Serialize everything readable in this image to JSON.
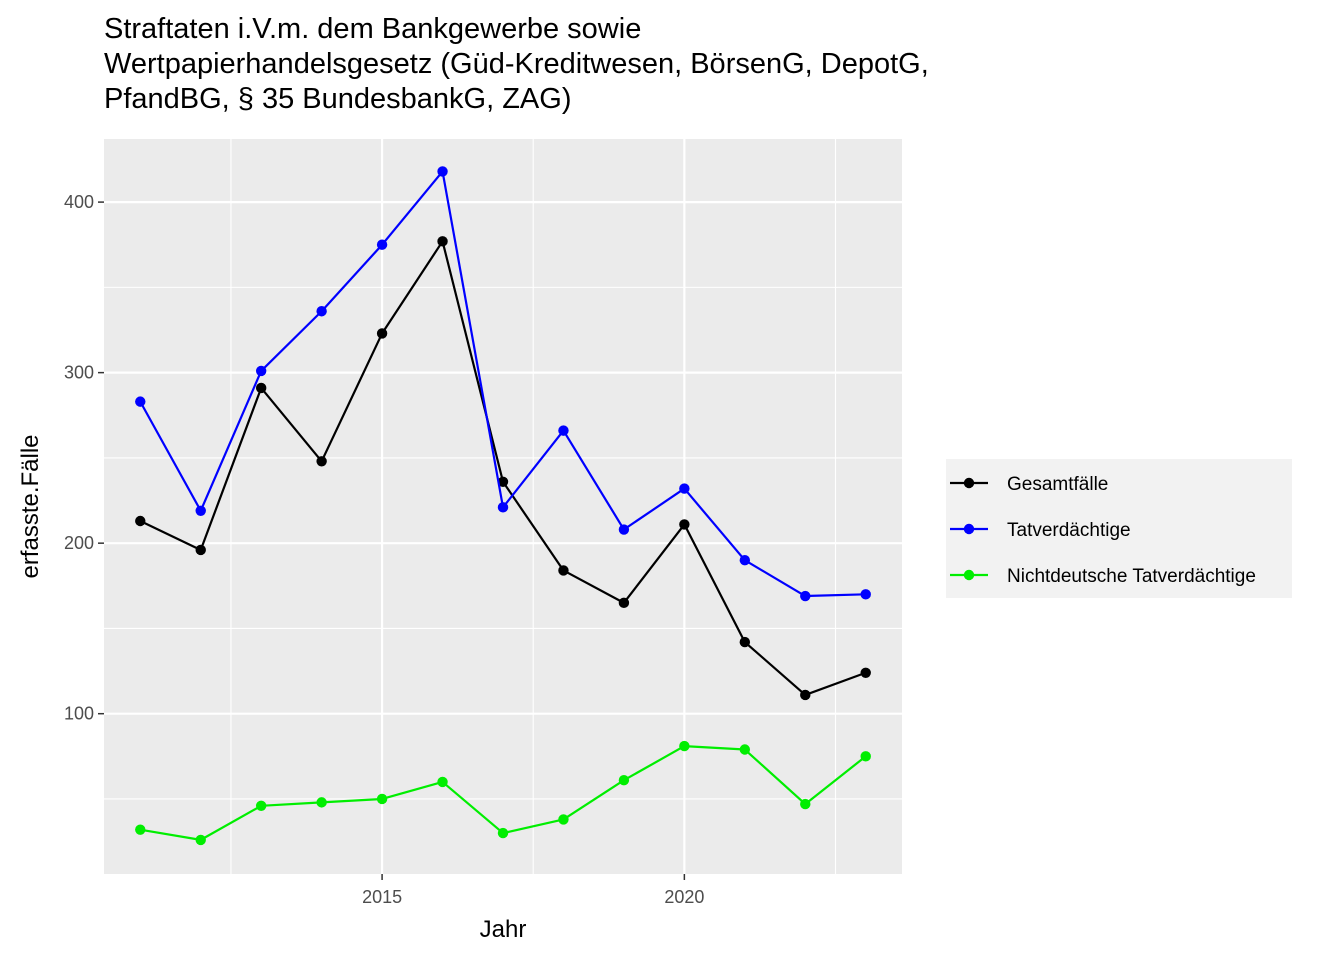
{
  "chart_data": {
    "type": "line",
    "title_lines": [
      "Straftaten i.V.m. dem Bankgewerbe sowie",
      "Wertpapierhandelsgesetz (Güd-Kreditwesen, BörsenG, DepotG,",
      "PfandBG, § 35 BundesbankG, ZAG)"
    ],
    "xlabel": "Jahr",
    "ylabel": "erfasste.Fälle",
    "x": [
      2011,
      2012,
      2013,
      2014,
      2015,
      2016,
      2017,
      2018,
      2019,
      2020,
      2021,
      2022,
      2023
    ],
    "xlim": [
      2010.4,
      2023.6
    ],
    "ylim": [
      6,
      437
    ],
    "x_ticks": [
      2015,
      2020
    ],
    "y_ticks": [
      100,
      200,
      300,
      400
    ],
    "grid": true,
    "legend_position": "right",
    "series": [
      {
        "name": "Gesamtfälle",
        "color": "#000000",
        "values": [
          213,
          196,
          291,
          248,
          323,
          377,
          236,
          184,
          165,
          211,
          142,
          111,
          124
        ]
      },
      {
        "name": "Tatverdächtige",
        "color": "#0000ff",
        "values": [
          283,
          219,
          301,
          336,
          375,
          418,
          221,
          266,
          208,
          232,
          190,
          169,
          170
        ]
      },
      {
        "name": "Nichtdeutsche Tatverdächtige",
        "color": "#00ee00",
        "values": [
          32,
          26,
          46,
          48,
          50,
          60,
          30,
          38,
          61,
          81,
          79,
          47,
          75
        ]
      }
    ]
  }
}
